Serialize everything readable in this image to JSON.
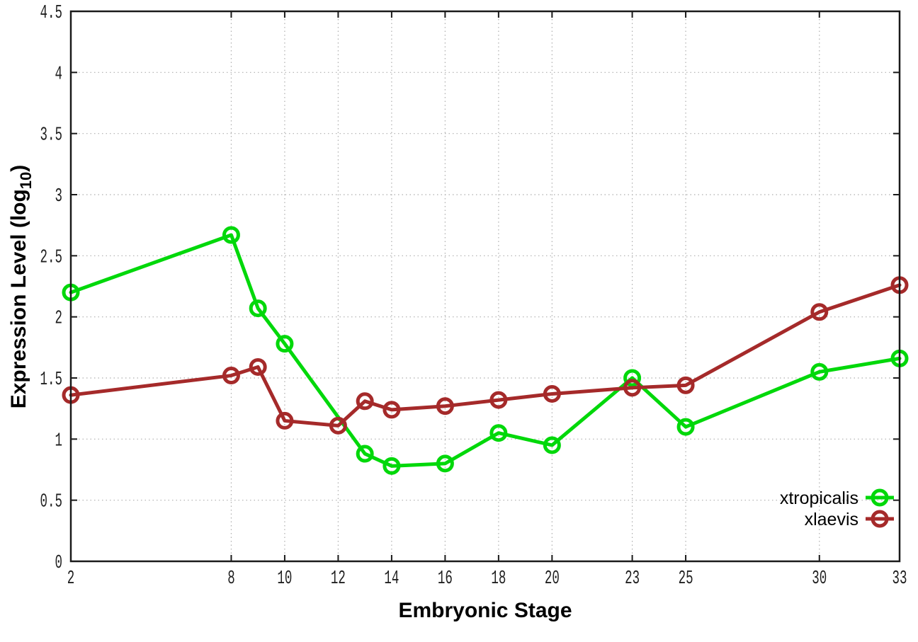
{
  "chart_data": {
    "type": "line",
    "title": "",
    "xlabel": "Embryonic Stage",
    "ylabel": "Expression Level (log10)",
    "ylabel_parts": {
      "prefix": "Expression Level (log",
      "sub": "10",
      "suffix": ")"
    },
    "xlim": [
      2,
      33
    ],
    "ylim": [
      0,
      4.5
    ],
    "xticks": [
      2,
      8,
      10,
      12,
      14,
      16,
      18,
      20,
      23,
      25,
      30,
      33
    ],
    "yticks": [
      0,
      0.5,
      1,
      1.5,
      2,
      2.5,
      3,
      3.5,
      4,
      4.5
    ],
    "grid": true,
    "grid_style": "dotted",
    "legend_position": "inside-bottom-right",
    "series": [
      {
        "name": "xtropicalis",
        "color": "#00d80a",
        "marker": "open-circle",
        "points": [
          [
            2,
            2.2
          ],
          [
            8,
            2.67
          ],
          [
            9,
            2.07
          ],
          [
            10,
            1.78
          ],
          [
            13,
            0.88
          ],
          [
            14,
            0.78
          ],
          [
            16,
            0.8
          ],
          [
            18,
            1.05
          ],
          [
            20,
            0.95
          ],
          [
            23,
            1.5
          ],
          [
            25,
            1.1
          ],
          [
            30,
            1.55
          ],
          [
            33,
            1.66
          ]
        ]
      },
      {
        "name": "xlaevis",
        "color": "#a52a2a",
        "marker": "open-circle",
        "points": [
          [
            2,
            1.36
          ],
          [
            8,
            1.52
          ],
          [
            9,
            1.59
          ],
          [
            10,
            1.15
          ],
          [
            12,
            1.11
          ],
          [
            13,
            1.31
          ],
          [
            14,
            1.24
          ],
          [
            16,
            1.27
          ],
          [
            18,
            1.32
          ],
          [
            20,
            1.37
          ],
          [
            23,
            1.42
          ],
          [
            25,
            1.44
          ],
          [
            30,
            2.04
          ],
          [
            33,
            2.26
          ]
        ]
      }
    ],
    "colors": {
      "plot_border": "#1a1a1a",
      "gridline": "#aeaeae",
      "tick_text": "#1f1f1f"
    }
  }
}
